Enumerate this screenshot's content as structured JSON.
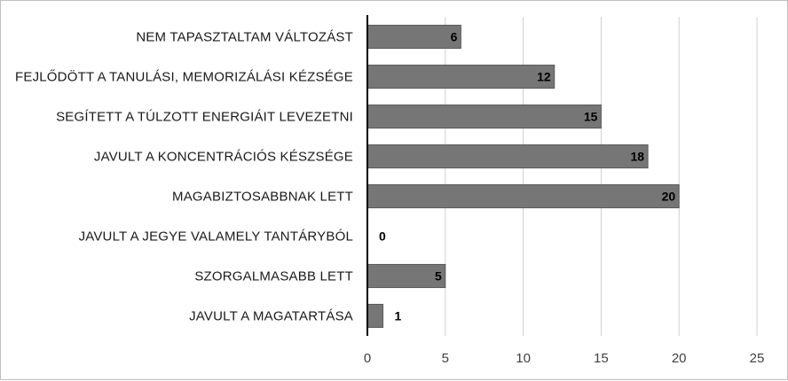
{
  "chart_data": {
    "type": "bar",
    "orientation": "horizontal",
    "title": "",
    "xlabel": "",
    "ylabel": "",
    "categories": [
      "NEM TAPASZTALTAM VÁLTOZÁST",
      "FEJLŐDÖTT A TANULÁSI, MEMORIZÁLÁSI KÉZSÉGE",
      "SEGÍTETT A TÚLZOTT ENERGIÁIT LEVEZETNI",
      "JAVULT A  KONCENTRÁCIÓS KÉSZSÉGE",
      "MAGABIZTOSABBNAK LETT",
      "JAVULT A JEGYE VALAMELY TANTÁRYBÓL",
      "SZORGALMASABB LETT",
      "JAVULT A MAGATARTÁSA"
    ],
    "values": [
      6,
      12,
      15,
      18,
      20,
      0,
      5,
      1
    ],
    "data_labels": [
      "6",
      "12",
      "15",
      "18",
      "20",
      "0",
      "5",
      "1"
    ],
    "xlim": [
      0,
      25
    ],
    "x_ticks": [
      "0",
      "5",
      "10",
      "15",
      "20",
      "25"
    ],
    "grid": true,
    "bar_color": "#767676",
    "legend": "none"
  }
}
